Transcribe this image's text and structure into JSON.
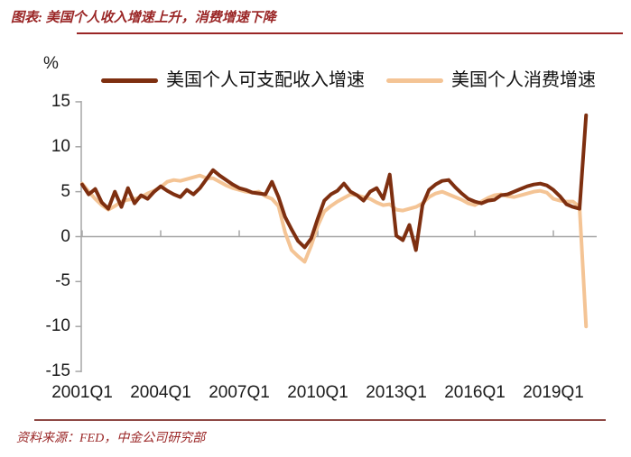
{
  "header": {
    "title": "图表: 美国个人收入增速上升，消费增速下降"
  },
  "footer": {
    "source": "资料来源：FED，中金公司研究部"
  },
  "colors": {
    "accent_red": "#9A2626",
    "rule_bottom": "#8E4945",
    "axis_gray": "#A6A6A6",
    "income_line": "#7E2F10",
    "consumption_line": "#F4C495"
  },
  "chart_data": {
    "type": "line",
    "title": "图表: 美国个人收入增速上升，消费增速下降",
    "unit_label": "%",
    "xlabel": "",
    "ylabel": "%",
    "ylim": [
      -15,
      15
    ],
    "y_ticks": [
      15,
      10,
      5,
      0,
      -5,
      -10,
      -15
    ],
    "grid": false,
    "legend_position": "top",
    "x_start": "2001Q1",
    "x_end": "2020Q2",
    "frequency": "quarterly",
    "x_ticks": [
      {
        "label": "2001Q1",
        "quarter_index": 0
      },
      {
        "label": "2004Q1",
        "quarter_index": 12
      },
      {
        "label": "2007Q1",
        "quarter_index": 24
      },
      {
        "label": "2010Q1",
        "quarter_index": 36
      },
      {
        "label": "2013Q1",
        "quarter_index": 48
      },
      {
        "label": "2016Q1",
        "quarter_index": 60
      },
      {
        "label": "2019Q1",
        "quarter_index": 72
      }
    ],
    "series": [
      {
        "name": "美国个人可支配收入增速",
        "color": "#7E2F10",
        "values": [
          5.8,
          4.7,
          5.3,
          3.8,
          3.1,
          5.0,
          3.3,
          5.4,
          3.7,
          4.6,
          4.2,
          5.0,
          5.6,
          5.1,
          4.7,
          4.4,
          5.2,
          4.7,
          5.4,
          6.4,
          7.4,
          6.8,
          6.3,
          5.8,
          5.4,
          5.2,
          4.9,
          4.8,
          4.7,
          6.1,
          4.4,
          2.2,
          0.8,
          -0.5,
          -1.2,
          -0.2,
          2.0,
          4.0,
          4.7,
          5.1,
          5.9,
          5.0,
          4.6,
          4.0,
          5.0,
          5.4,
          4.2,
          6.9,
          0.1,
          -0.4,
          1.3,
          -1.5,
          3.5,
          5.2,
          5.8,
          6.2,
          6.3,
          5.5,
          4.8,
          4.2,
          3.9,
          3.7,
          4.0,
          4.1,
          4.6,
          4.7,
          5.0,
          5.3,
          5.6,
          5.8,
          5.9,
          5.7,
          5.2,
          4.5,
          3.6,
          3.3,
          3.1,
          13.5
        ]
      },
      {
        "name": "美国个人消费增速",
        "color": "#F4C495",
        "values": [
          5.9,
          5.0,
          4.2,
          3.5,
          3.0,
          3.4,
          3.9,
          4.1,
          4.2,
          4.4,
          4.8,
          5.1,
          5.5,
          6.1,
          6.3,
          6.2,
          6.4,
          6.6,
          6.8,
          6.5,
          6.5,
          6.1,
          5.7,
          5.4,
          5.2,
          5.0,
          4.9,
          5.0,
          4.5,
          4.2,
          3.4,
          0.5,
          -1.5,
          -2.2,
          -2.8,
          -1.0,
          1.2,
          2.8,
          3.4,
          3.9,
          4.3,
          4.7,
          4.6,
          4.4,
          4.2,
          3.8,
          3.5,
          3.6,
          3.0,
          2.9,
          3.1,
          3.3,
          3.7,
          4.4,
          4.8,
          5.0,
          4.7,
          4.4,
          4.1,
          3.7,
          3.5,
          3.9,
          4.3,
          4.6,
          4.7,
          4.5,
          4.4,
          4.6,
          4.8,
          5.0,
          5.1,
          4.9,
          4.2,
          4.0,
          3.9,
          3.9,
          3.3,
          -10.0
        ]
      }
    ]
  }
}
